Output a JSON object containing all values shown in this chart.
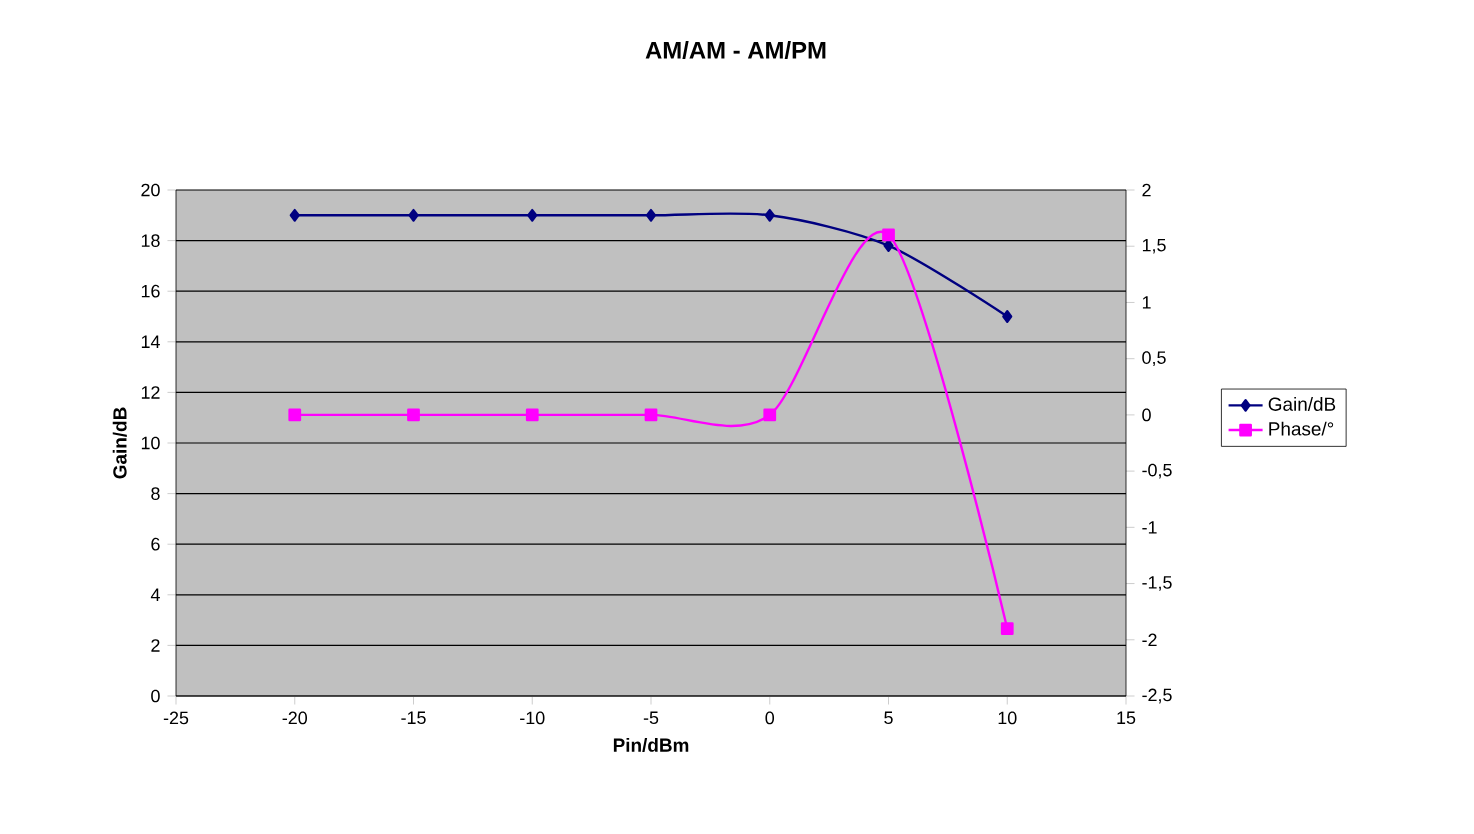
{
  "chart_data": {
    "type": "line",
    "title": "AM/AM - AM/PM",
    "xlabel": "Pin/dBm",
    "ylabel": "Gain/dB",
    "x": [
      -20,
      -15,
      -10,
      -5,
      0,
      5,
      10
    ],
    "series": [
      {
        "name": "Gain/dB",
        "color": "#000080",
        "marker": "diamond",
        "values": [
          19,
          19,
          19,
          19,
          19,
          17.8,
          15
        ]
      },
      {
        "name": "Phase/°",
        "color": "#ff00ff",
        "marker": "square",
        "axis": "y2",
        "values": [
          0,
          0,
          0,
          0,
          0,
          1.6,
          -1.9
        ]
      }
    ],
    "xlim": [
      -25,
      15
    ],
    "xticks": [
      -25,
      -20,
      -15,
      -10,
      -5,
      0,
      5,
      10,
      15
    ],
    "ylim": [
      0,
      20
    ],
    "yticks": [
      0,
      2,
      4,
      6,
      8,
      10,
      12,
      14,
      16,
      18,
      20
    ],
    "y2lim": [
      -2.5,
      2
    ],
    "y2ticks": [
      {
        "value": -2.5,
        "label": "-2,5"
      },
      -2,
      {
        "value": -1.5,
        "label": "-1,5"
      },
      -1,
      {
        "value": -0.5,
        "label": "-0,5"
      },
      0,
      {
        "value": 0.5,
        "label": "0,5"
      },
      1,
      {
        "value": 1.5,
        "label": "1,5"
      },
      2
    ],
    "grid": "y",
    "legend": "right",
    "line_style": "solid"
  }
}
